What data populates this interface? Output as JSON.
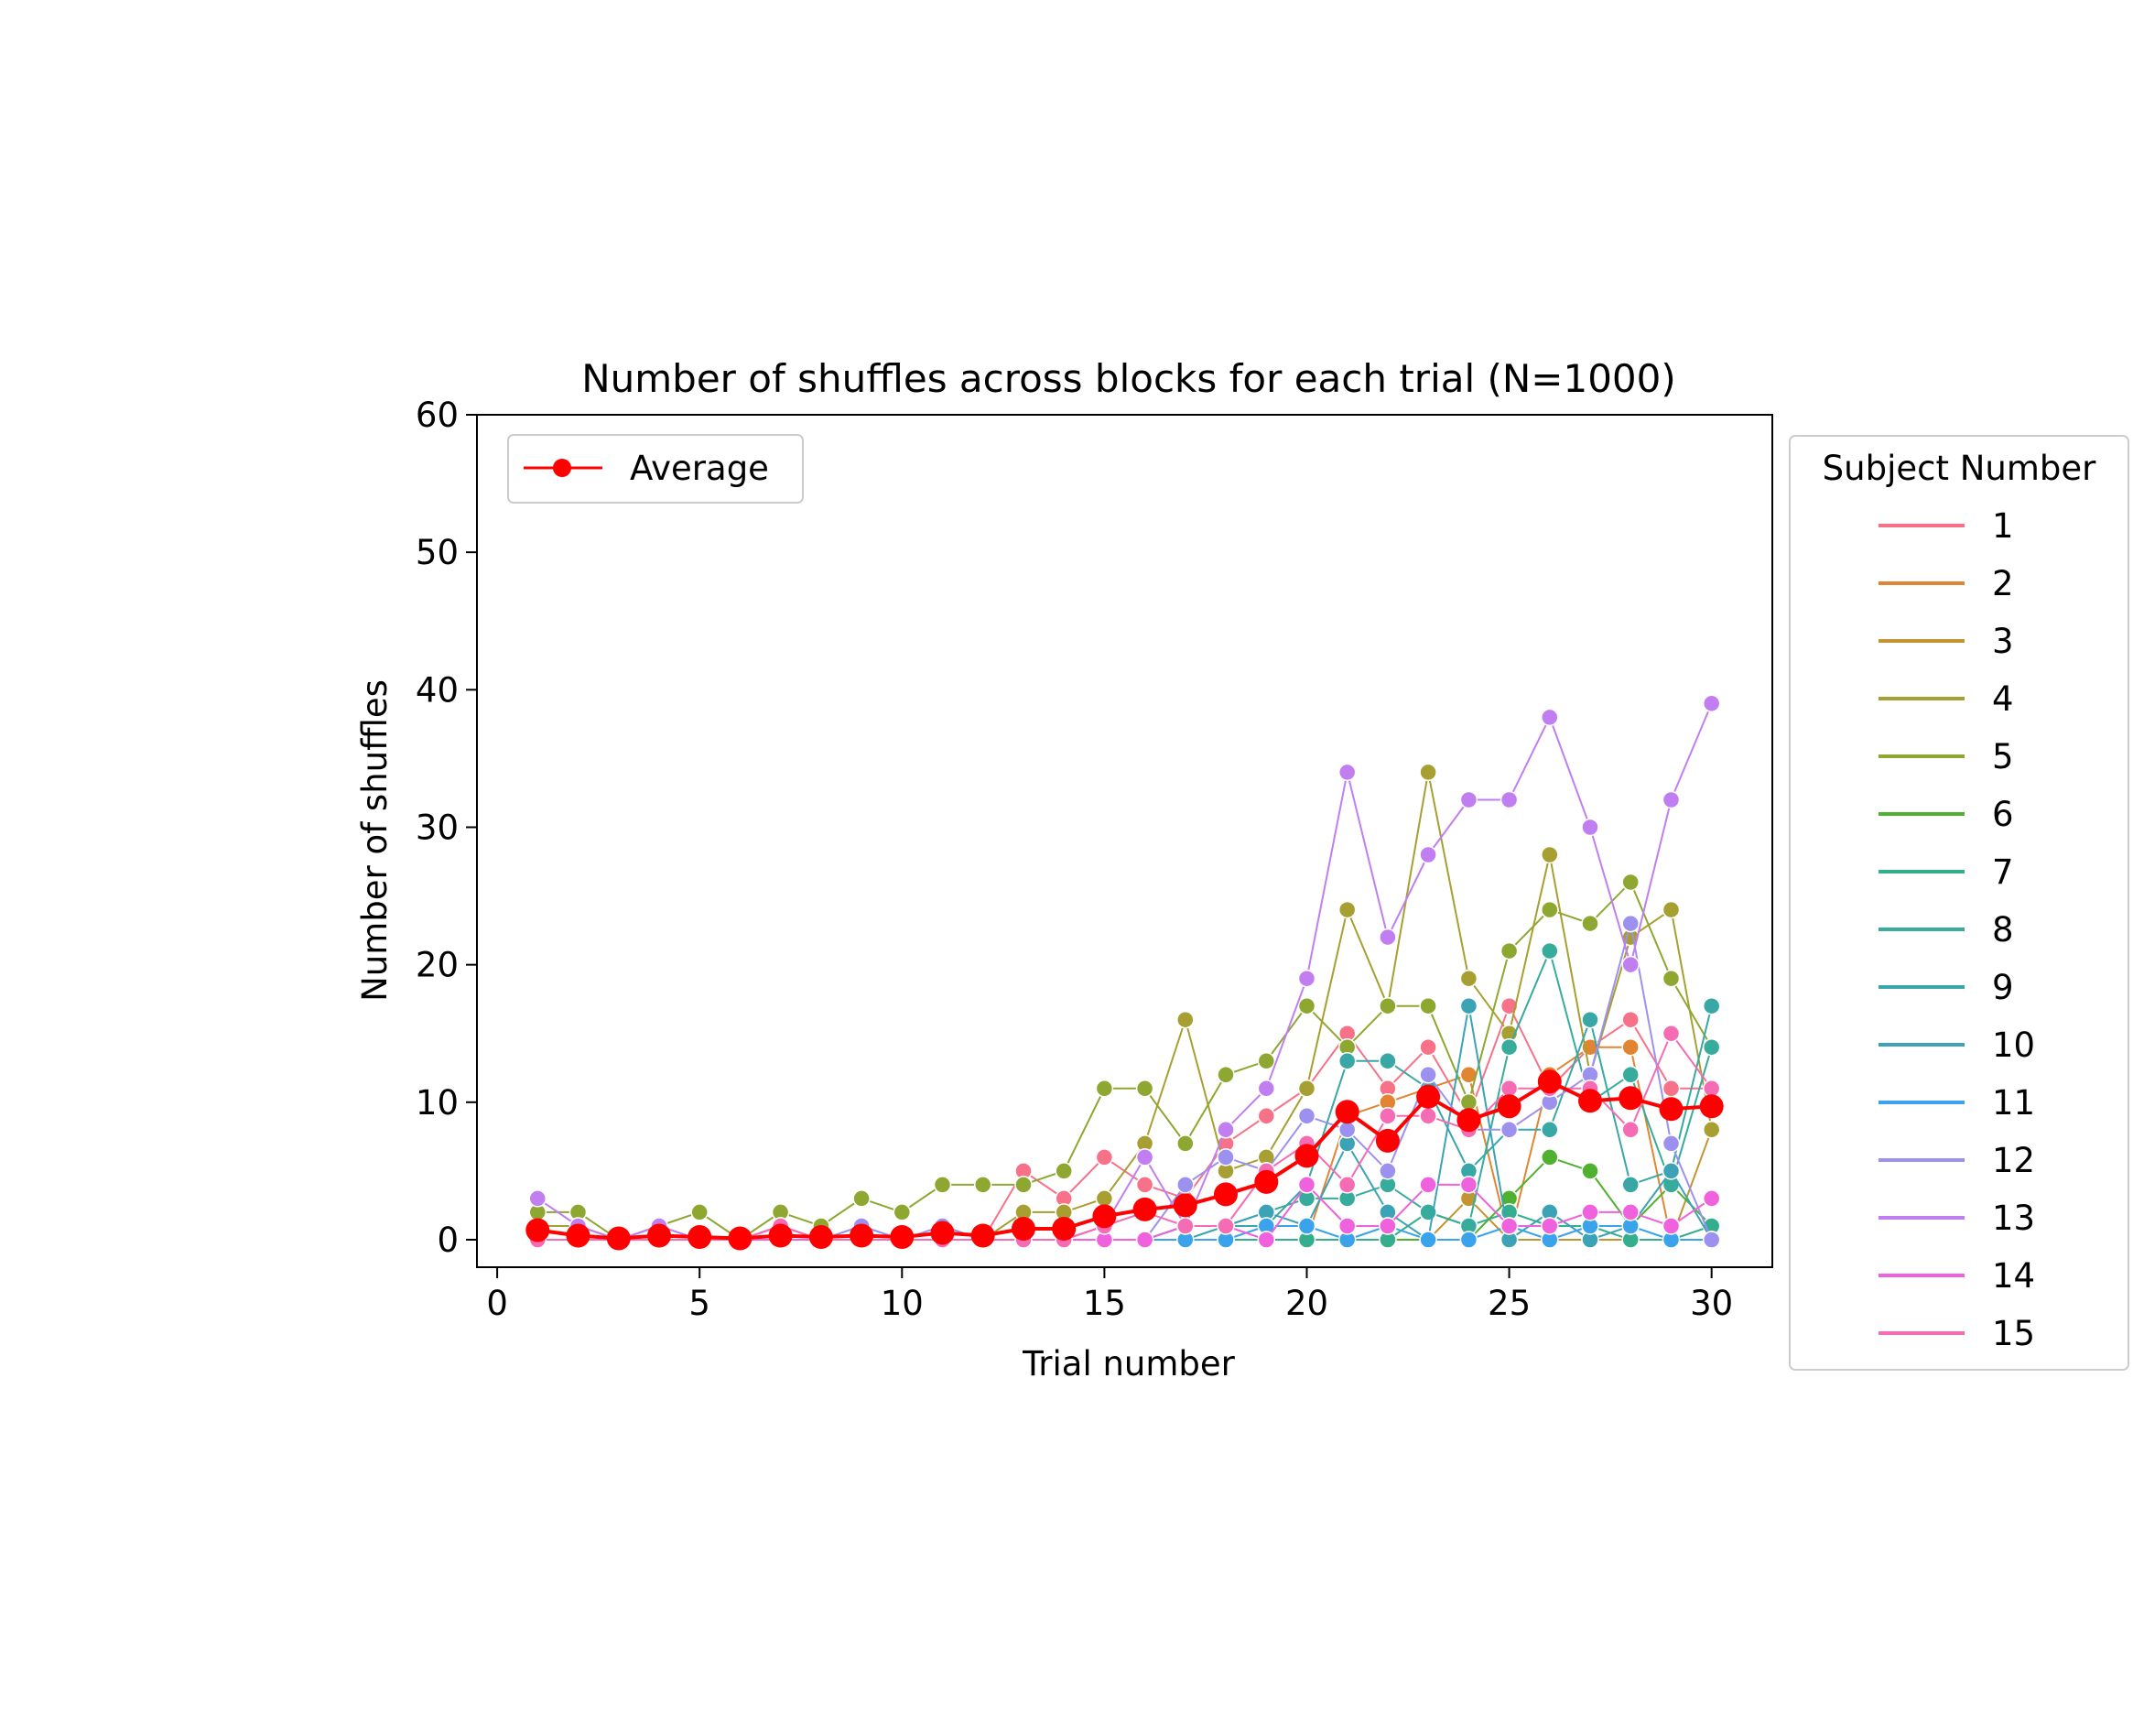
{
  "chart_data": {
    "type": "line",
    "title": "Number of shuffles across blocks for each trial (N=1000)",
    "xlabel": "Trial number",
    "ylabel": "Number of shuffles",
    "xlim": [
      -0.5,
      31.5
    ],
    "ylim": [
      -2,
      60
    ],
    "xticks": [
      0,
      5,
      10,
      15,
      20,
      25,
      30
    ],
    "yticks": [
      0,
      10,
      20,
      30,
      40,
      50,
      60
    ],
    "grid": false,
    "x": [
      1,
      2,
      3,
      4,
      5,
      6,
      7,
      8,
      9,
      10,
      11,
      12,
      13,
      14,
      15,
      16,
      17,
      18,
      19,
      20,
      21,
      22,
      23,
      24,
      25,
      26,
      27,
      28,
      29,
      30
    ],
    "legend_main": {
      "placement": "upper left",
      "label": "Average"
    },
    "legend_subjects": {
      "placement": "outside right",
      "title": "Subject Number"
    },
    "average": {
      "name": "Average",
      "color": "#ff0000",
      "values": [
        0.7,
        0.3,
        0.1,
        0.3,
        0.2,
        0.1,
        0.3,
        0.2,
        0.3,
        0.2,
        0.5,
        0.3,
        0.8,
        0.8,
        1.7,
        2.2,
        2.5,
        3.3,
        4.2,
        6.1,
        9.3,
        7.2,
        10.4,
        8.7,
        9.7,
        11.5,
        10.1,
        10.3,
        9.5,
        9.7
      ]
    },
    "series": [
      {
        "name": "1",
        "color": "#f77189",
        "values": [
          0,
          0,
          0,
          0,
          0,
          0,
          0,
          0,
          0,
          0,
          0,
          0,
          5,
          3,
          6,
          4,
          3,
          7,
          9,
          11,
          15,
          11,
          14,
          9,
          17,
          11,
          14,
          16,
          11,
          11
        ]
      },
      {
        "name": "2",
        "color": "#e18532",
        "values": [
          0,
          0,
          0,
          0,
          0,
          0,
          0,
          0,
          0,
          0,
          0,
          0,
          0,
          0,
          0,
          0,
          0,
          0,
          0,
          0,
          9,
          10,
          11,
          12,
          0,
          12,
          14,
          14,
          0,
          0
        ]
      },
      {
        "name": "3",
        "color": "#c39532",
        "values": [
          0,
          0,
          0,
          0,
          0,
          0,
          0,
          0,
          0,
          0,
          0,
          0,
          0,
          0,
          0,
          0,
          0,
          0,
          0,
          0,
          0,
          0,
          0,
          3,
          0,
          0,
          0,
          0,
          0,
          8
        ]
      },
      {
        "name": "4",
        "color": "#a79f31",
        "values": [
          1,
          1,
          0,
          0,
          0,
          0,
          0,
          0,
          0,
          0,
          0,
          0,
          2,
          2,
          3,
          7,
          16,
          5,
          6,
          11,
          24,
          17,
          34,
          19,
          15,
          28,
          12,
          22,
          24,
          8
        ]
      },
      {
        "name": "5",
        "color": "#8da731",
        "values": [
          2,
          2,
          0,
          1,
          2,
          0,
          2,
          1,
          3,
          2,
          4,
          4,
          4,
          5,
          11,
          11,
          7,
          12,
          13,
          17,
          14,
          17,
          17,
          10,
          21,
          24,
          23,
          26,
          19,
          14
        ]
      },
      {
        "name": "6",
        "color": "#50b131",
        "values": [
          0,
          0,
          0,
          0,
          0,
          0,
          0,
          0,
          0,
          0,
          0,
          0,
          0,
          0,
          0,
          0,
          0,
          0,
          0,
          0,
          0,
          0,
          0,
          0,
          3,
          6,
          5,
          1,
          4,
          1
        ]
      },
      {
        "name": "7",
        "color": "#34ae8c",
        "values": [
          0,
          0,
          0,
          0,
          0,
          0,
          0,
          0,
          0,
          0,
          0,
          0,
          0,
          0,
          0,
          0,
          0,
          0,
          0,
          0,
          0,
          0,
          2,
          1,
          2,
          1,
          1,
          0,
          0,
          1
        ]
      },
      {
        "name": "8",
        "color": "#37ab9c",
        "values": [
          0,
          0,
          0,
          0,
          0,
          0,
          0,
          0,
          0,
          0,
          0,
          0,
          0,
          0,
          0,
          0,
          1,
          1,
          2,
          3,
          3,
          4,
          2,
          1,
          14,
          21,
          10,
          12,
          4,
          14
        ]
      },
      {
        "name": "9",
        "color": "#39a7a6",
        "values": [
          0,
          0,
          0,
          0,
          0,
          0,
          0,
          0,
          0,
          0,
          0,
          0,
          0,
          0,
          0,
          0,
          1,
          1,
          1,
          4,
          13,
          13,
          11,
          5,
          8,
          8,
          16,
          4,
          5,
          17
        ]
      },
      {
        "name": "10",
        "color": "#3ba3b5",
        "values": [
          0,
          0,
          0,
          0,
          0,
          0,
          0,
          0,
          0,
          0,
          0,
          0,
          0,
          0,
          0,
          0,
          0,
          1,
          2,
          1,
          7,
          2,
          0,
          17,
          0,
          2,
          0,
          1,
          5,
          0
        ]
      },
      {
        "name": "11",
        "color": "#3ba3ec",
        "values": [
          0,
          0,
          0,
          0,
          0,
          0,
          0,
          0,
          0,
          0,
          0,
          0,
          0,
          0,
          0,
          0,
          0,
          0,
          1,
          1,
          0,
          1,
          0,
          0,
          1,
          0,
          1,
          1,
          0,
          0
        ]
      },
      {
        "name": "12",
        "color": "#9c91ef",
        "values": [
          0,
          0,
          0,
          0,
          0,
          0,
          0,
          0,
          1,
          0,
          1,
          0,
          0,
          0,
          0,
          0,
          4,
          6,
          5,
          9,
          8,
          5,
          12,
          8,
          8,
          10,
          12,
          23,
          7,
          0
        ]
      },
      {
        "name": "13",
        "color": "#c17ef1",
        "values": [
          3,
          1,
          0,
          1,
          0,
          0,
          1,
          0,
          0,
          0,
          0,
          0,
          0,
          0,
          1,
          6,
          1,
          8,
          11,
          19,
          34,
          22,
          28,
          32,
          32,
          38,
          30,
          20,
          32,
          39
        ]
      },
      {
        "name": "14",
        "color": "#f061dd",
        "values": [
          0,
          0,
          0,
          0,
          0,
          0,
          0,
          0,
          0,
          0,
          0,
          0,
          0,
          0,
          0,
          0,
          1,
          1,
          0,
          4,
          1,
          1,
          4,
          4,
          1,
          1,
          2,
          2,
          1,
          3
        ]
      },
      {
        "name": "15",
        "color": "#f56bb4",
        "values": [
          0,
          0,
          0,
          0,
          0,
          0,
          1,
          0,
          0,
          0,
          0,
          0,
          0,
          0,
          1,
          2,
          1,
          1,
          5,
          7,
          4,
          9,
          9,
          8,
          11,
          11,
          11,
          8,
          15,
          11
        ]
      }
    ]
  }
}
